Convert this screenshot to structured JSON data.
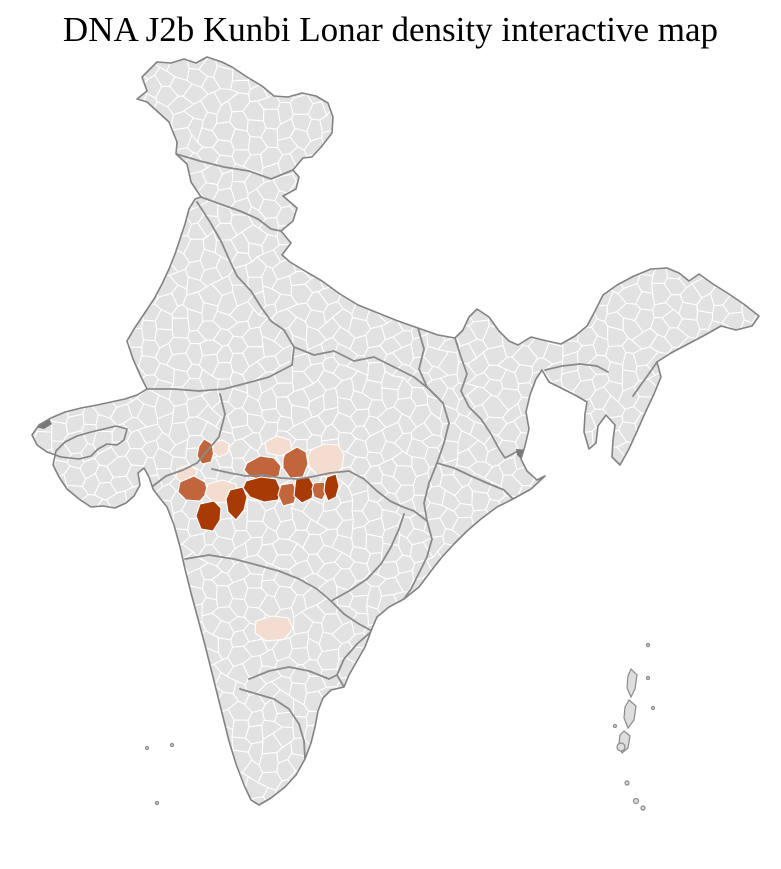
{
  "title": "DNA J2b Kunbi Lonar density interactive map",
  "map": {
    "kind": "choropleth",
    "region": "India districts",
    "background": "#ffffff",
    "base_fill": "#e2e2e2",
    "district_border": "#ffffff",
    "state_border": "#8a8a8a",
    "outline_color": "#828282",
    "delta_fill": "#787878",
    "island_fill": "#dedede",
    "density_levels": [
      {
        "level": "low",
        "color": "#f3ddd0"
      },
      {
        "level": "medium",
        "color": "#c1663c"
      },
      {
        "level": "high",
        "color": "#a83a06"
      }
    ],
    "highlighted_districts": [
      {
        "id": "d1",
        "level": "medium",
        "points": [
          [
            204,
            439
          ],
          [
            211,
            443
          ],
          [
            214,
            452
          ],
          [
            211,
            462
          ],
          [
            202,
            464
          ],
          [
            197,
            456
          ],
          [
            199,
            446
          ]
        ]
      },
      {
        "id": "d2",
        "level": "low",
        "points": [
          [
            213,
            443
          ],
          [
            222,
            440
          ],
          [
            229,
            444
          ],
          [
            228,
            453
          ],
          [
            219,
            457
          ],
          [
            213,
            452
          ]
        ]
      },
      {
        "id": "d3",
        "level": "low",
        "points": [
          [
            177,
            469
          ],
          [
            189,
            465
          ],
          [
            197,
            470
          ],
          [
            195,
            480
          ],
          [
            184,
            484
          ],
          [
            176,
            478
          ]
        ]
      },
      {
        "id": "d4",
        "level": "medium",
        "points": [
          [
            180,
            482
          ],
          [
            194,
            476
          ],
          [
            205,
            482
          ],
          [
            208,
            492
          ],
          [
            200,
            501
          ],
          [
            186,
            500
          ],
          [
            178,
            492
          ]
        ]
      },
      {
        "id": "d5",
        "level": "low",
        "points": [
          [
            208,
            484
          ],
          [
            222,
            480
          ],
          [
            236,
            484
          ],
          [
            238,
            495
          ],
          [
            228,
            503
          ],
          [
            212,
            502
          ],
          [
            205,
            494
          ]
        ]
      },
      {
        "id": "d6",
        "level": "high",
        "points": [
          [
            200,
            504
          ],
          [
            214,
            501
          ],
          [
            221,
            508
          ],
          [
            220,
            520
          ],
          [
            213,
            531
          ],
          [
            201,
            529
          ],
          [
            196,
            516
          ]
        ]
      },
      {
        "id": "d7",
        "level": "high",
        "points": [
          [
            230,
            490
          ],
          [
            243,
            487
          ],
          [
            247,
            497
          ],
          [
            244,
            510
          ],
          [
            236,
            520
          ],
          [
            228,
            512
          ],
          [
            226,
            499
          ]
        ]
      },
      {
        "id": "d8",
        "level": "medium",
        "points": [
          [
            247,
            463
          ],
          [
            260,
            456
          ],
          [
            274,
            458
          ],
          [
            281,
            466
          ],
          [
            279,
            476
          ],
          [
            264,
            480
          ],
          [
            250,
            477
          ],
          [
            244,
            470
          ]
        ]
      },
      {
        "id": "d9",
        "level": "low",
        "points": [
          [
            265,
            442
          ],
          [
            277,
            436
          ],
          [
            290,
            440
          ],
          [
            292,
            450
          ],
          [
            281,
            456
          ],
          [
            267,
            453
          ]
        ]
      },
      {
        "id": "d10",
        "level": "medium",
        "points": [
          [
            285,
            454
          ],
          [
            297,
            447
          ],
          [
            306,
            452
          ],
          [
            308,
            464
          ],
          [
            303,
            477
          ],
          [
            290,
            478
          ],
          [
            283,
            468
          ],
          [
            283,
            459
          ]
        ]
      },
      {
        "id": "d11",
        "level": "low",
        "points": [
          [
            311,
            450
          ],
          [
            324,
            444
          ],
          [
            338,
            445
          ],
          [
            344,
            454
          ],
          [
            342,
            468
          ],
          [
            333,
            477
          ],
          [
            318,
            476
          ],
          [
            309,
            466
          ],
          [
            308,
            456
          ]
        ]
      },
      {
        "id": "d12",
        "level": "high",
        "points": [
          [
            246,
            481
          ],
          [
            261,
            477
          ],
          [
            276,
            479
          ],
          [
            281,
            490
          ],
          [
            278,
            500
          ],
          [
            264,
            502
          ],
          [
            250,
            497
          ],
          [
            243,
            488
          ]
        ]
      },
      {
        "id": "d13",
        "level": "medium",
        "points": [
          [
            281,
            485
          ],
          [
            293,
            483
          ],
          [
            297,
            492
          ],
          [
            294,
            503
          ],
          [
            283,
            506
          ],
          [
            278,
            495
          ]
        ]
      },
      {
        "id": "d14",
        "level": "high",
        "points": [
          [
            296,
            479
          ],
          [
            309,
            477
          ],
          [
            314,
            486
          ],
          [
            312,
            498
          ],
          [
            302,
            503
          ],
          [
            294,
            496
          ],
          [
            295,
            486
          ]
        ]
      },
      {
        "id": "d15",
        "level": "medium",
        "points": [
          [
            314,
            483
          ],
          [
            324,
            482
          ],
          [
            327,
            491
          ],
          [
            322,
            500
          ],
          [
            314,
            497
          ],
          [
            312,
            489
          ]
        ]
      },
      {
        "id": "d16",
        "level": "high",
        "points": [
          [
            327,
            477
          ],
          [
            336,
            474
          ],
          [
            339,
            486
          ],
          [
            336,
            497
          ],
          [
            328,
            501
          ],
          [
            324,
            491
          ],
          [
            325,
            482
          ]
        ]
      },
      {
        "id": "d17",
        "level": "low",
        "points": [
          [
            256,
            621
          ],
          [
            272,
            616
          ],
          [
            288,
            618
          ],
          [
            293,
            628
          ],
          [
            285,
            639
          ],
          [
            266,
            641
          ],
          [
            255,
            633
          ]
        ]
      }
    ]
  }
}
